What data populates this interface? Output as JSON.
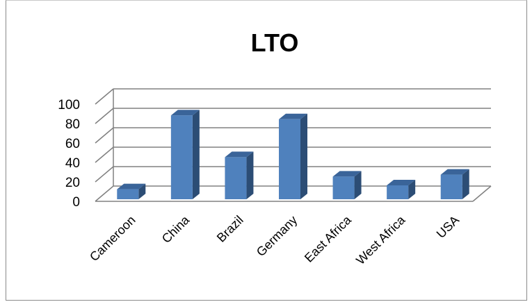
{
  "chart_data": {
    "type": "bar",
    "title": "LTO",
    "categories": [
      "Cameroon",
      "China",
      "Brazil",
      "Germany",
      "East Africa",
      "West Africa",
      "USA"
    ],
    "values": [
      11,
      87,
      44,
      83,
      24,
      15,
      26
    ],
    "yticks": [
      "0",
      "20",
      "40",
      "60",
      "80",
      "100"
    ],
    "ylim": [
      0,
      100
    ],
    "grid": true,
    "legend": "none",
    "colors": {
      "bar_front": "#4f81bd",
      "bar_side": "#2c4d75",
      "bar_top": "#3a6499",
      "grid": "#808080"
    }
  }
}
